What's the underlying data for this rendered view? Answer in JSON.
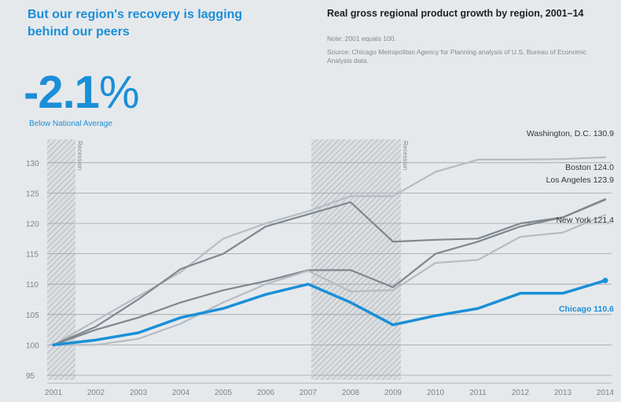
{
  "headline": "But our region's recovery is lagging behind our peers",
  "stat": {
    "value": "-2.1",
    "unit": "%",
    "caption": "Below National Average"
  },
  "colors": {
    "highlight": "#1a8fd8",
    "peer": "#b5bcc2",
    "peer_dark": "#7f878d",
    "grid": "#9aa1a7",
    "background": "#e6e9ec"
  },
  "chart_data": {
    "type": "line",
    "title": "Real gross regional product growth by region, 2001–14",
    "note": "Note: 2001 equals 100.",
    "source": "Source: Chicago Metropolitan Agency for Planning analysis of U.S. Bureau of Economic Analysis data.",
    "x": [
      2001,
      2002,
      2003,
      2004,
      2005,
      2006,
      2007,
      2008,
      2009,
      2010,
      2011,
      2012,
      2013,
      2014
    ],
    "x_ticks": [
      "2001",
      "2002",
      "2003",
      "2004",
      "2005",
      "2006",
      "2007",
      "2008",
      "2009",
      "2010",
      "2011",
      "2012",
      "2013",
      "2014"
    ],
    "ylim": [
      95,
      131
    ],
    "y_ticks": [
      95,
      100,
      105,
      110,
      115,
      120,
      125,
      130
    ],
    "grid": true,
    "recessions": [
      {
        "label": "Recession",
        "start": 2001,
        "end": 2001.6
      },
      {
        "label": "Recession",
        "start": 2007,
        "end": 2009
      }
    ],
    "series": [
      {
        "name": "Washington, D.C.",
        "end_label": "130.9",
        "highlight": false,
        "values": [
          100,
          104,
          108,
          112,
          117.5,
          120,
          122,
          124.5,
          124.5,
          128.5,
          130.5,
          130.5,
          130.6,
          130.9
        ]
      },
      {
        "name": "Boston",
        "end_label": "124.0",
        "highlight": false,
        "values": [
          100,
          102.5,
          104.5,
          107,
          109,
          110.5,
          112.3,
          112.3,
          109.5,
          115,
          117,
          119.5,
          121,
          124
        ]
      },
      {
        "name": "Los Angeles",
        "end_label": "123.9",
        "highlight": false,
        "values": [
          100,
          103,
          107.5,
          112.5,
          115,
          119.5,
          121.5,
          123.5,
          117,
          117.3,
          117.5,
          120,
          121,
          123.9
        ]
      },
      {
        "name": "New York",
        "end_label": "121.4",
        "highlight": false,
        "values": [
          100,
          100,
          101,
          103.5,
          107,
          110,
          112.2,
          108.8,
          109,
          113.5,
          114,
          117.8,
          118.5,
          121.4
        ]
      },
      {
        "name": "Chicago",
        "end_label": "110.6",
        "highlight": true,
        "values": [
          100,
          100.8,
          102,
          104.5,
          106,
          108.3,
          110,
          107,
          103.3,
          104.8,
          106,
          108.5,
          108.5,
          110.6
        ]
      }
    ]
  }
}
